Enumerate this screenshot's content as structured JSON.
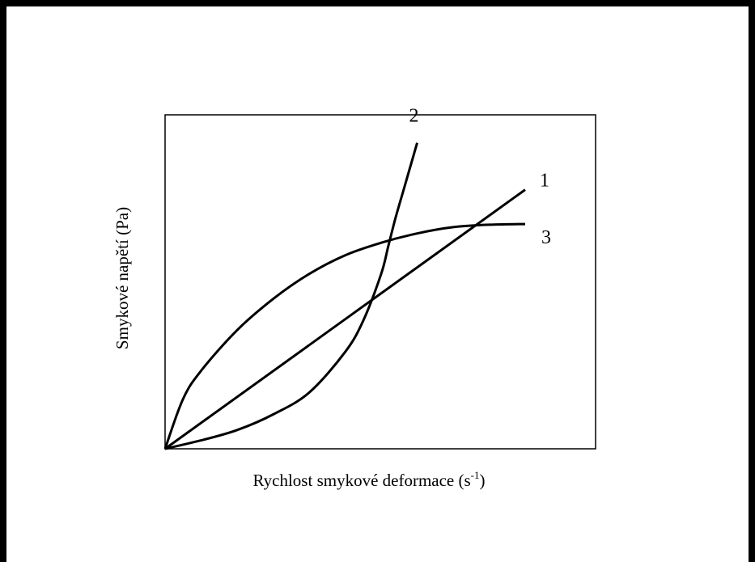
{
  "chart_data": {
    "type": "line",
    "title": "",
    "xlabel": "Rychlost smykové deformace (s",
    "xlabel_sup": "-1",
    "xlabel_end": ")",
    "ylabel": "Smykové napětí (Pa)",
    "xlim": [
      0,
      1
    ],
    "ylim": [
      0,
      1
    ],
    "ticks": false,
    "grid": false,
    "series": [
      {
        "name": "1",
        "x": [
          0,
          1
        ],
        "y": [
          0,
          0.83
        ]
      },
      {
        "name": "2",
        "x": [
          0,
          0.1,
          0.2,
          0.3,
          0.4,
          0.5,
          0.55,
          0.6,
          0.62,
          0.64,
          0.66,
          0.68,
          0.7
        ],
        "y": [
          0,
          0.027,
          0.06,
          0.11,
          0.18,
          0.31,
          0.41,
          0.56,
          0.65,
          0.74,
          0.82,
          0.9,
          0.98
        ]
      },
      {
        "name": "3",
        "x": [
          0,
          0.05,
          0.1,
          0.2,
          0.3,
          0.4,
          0.5,
          0.6,
          0.7,
          0.8,
          0.9,
          1.0
        ],
        "y": [
          0,
          0.16,
          0.25,
          0.38,
          0.48,
          0.56,
          0.62,
          0.66,
          0.69,
          0.71,
          0.718,
          0.72
        ]
      }
    ]
  }
}
